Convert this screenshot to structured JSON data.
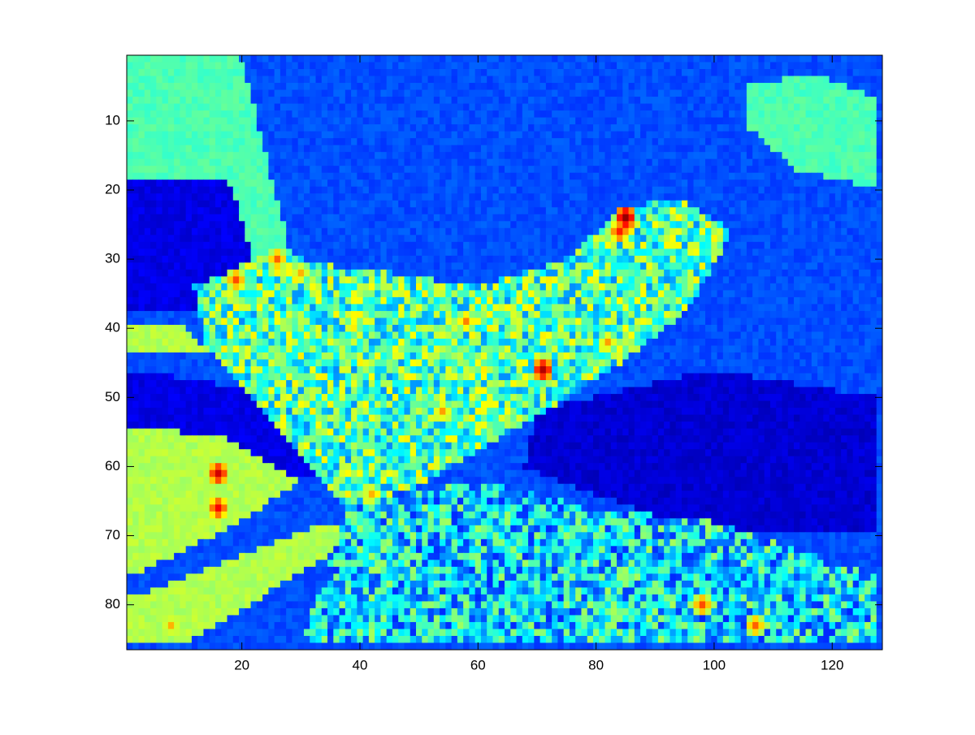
{
  "chart_data": {
    "type": "heatmap",
    "colormap": "jet",
    "title": "",
    "xlabel": "",
    "ylabel": "",
    "xlim": [
      0.5,
      128.5
    ],
    "ylim": [
      0.5,
      86.5
    ],
    "y_reversed": true,
    "grid": false,
    "legend": "none",
    "colorbar": false,
    "columns": 128,
    "rows": 86,
    "value_range": [
      0,
      1
    ],
    "x_ticks": [
      20,
      40,
      60,
      80,
      100,
      120
    ],
    "x_tick_labels": [
      "20",
      "40",
      "60",
      "80",
      "100",
      "120"
    ],
    "y_ticks": [
      10,
      20,
      30,
      40,
      50,
      60,
      70,
      80
    ],
    "y_tick_labels": [
      "10",
      "20",
      "30",
      "40",
      "50",
      "60",
      "70",
      "80"
    ],
    "regions": [
      {
        "description": "background sky",
        "value": 0.2
      },
      {
        "description": "upper-left diagonal band",
        "value": 0.45,
        "polygon": [
          [
            1,
            1
          ],
          [
            20,
            1
          ],
          [
            30,
            35
          ],
          [
            24,
            36
          ],
          [
            1,
            25
          ]
        ]
      },
      {
        "description": "upper-right patch",
        "value": 0.45,
        "polygon": [
          [
            106,
            5
          ],
          [
            117,
            3
          ],
          [
            128,
            7
          ],
          [
            128,
            20
          ],
          [
            114,
            17
          ],
          [
            106,
            11
          ]
        ]
      },
      {
        "description": "dark left region",
        "value": 0.1,
        "polygon": [
          [
            1,
            19
          ],
          [
            18,
            19
          ],
          [
            24,
            36
          ],
          [
            1,
            38
          ]
        ]
      },
      {
        "description": "dark middle-left region",
        "value": 0.1,
        "polygon": [
          [
            1,
            46
          ],
          [
            30,
            50
          ],
          [
            45,
            58
          ],
          [
            30,
            62
          ],
          [
            1,
            56
          ]
        ]
      },
      {
        "description": "dark right region",
        "value": 0.08,
        "polygon": [
          [
            70,
            52
          ],
          [
            100,
            46
          ],
          [
            128,
            50
          ],
          [
            128,
            70
          ],
          [
            100,
            70
          ],
          [
            80,
            64
          ],
          [
            68,
            60
          ]
        ]
      },
      {
        "description": "textured central shape",
        "value": 0.45,
        "polygon": [
          [
            12,
            34
          ],
          [
            25,
            29
          ],
          [
            36,
            31
          ],
          [
            46,
            32
          ],
          [
            60,
            34
          ],
          [
            75,
            30
          ],
          [
            84,
            23
          ],
          [
            94,
            21
          ],
          [
            103,
            26
          ],
          [
            96,
            37
          ],
          [
            86,
            44
          ],
          [
            72,
            52
          ],
          [
            60,
            58
          ],
          [
            50,
            63
          ],
          [
            38,
            66
          ],
          [
            30,
            58
          ],
          [
            22,
            50
          ],
          [
            14,
            43
          ]
        ]
      },
      {
        "description": "lower-left diagonal band",
        "value": 0.55,
        "polygon": [
          [
            1,
            79
          ],
          [
            35,
            68
          ],
          [
            40,
            70
          ],
          [
            10,
            86
          ],
          [
            1,
            86
          ]
        ]
      },
      {
        "description": "lower textured region",
        "value": 0.35,
        "polygon": [
          [
            38,
            66
          ],
          [
            60,
            62
          ],
          [
            80,
            66
          ],
          [
            100,
            68
          ],
          [
            128,
            76
          ],
          [
            128,
            86
          ],
          [
            30,
            86
          ]
        ]
      },
      {
        "description": "left mid patch",
        "value": 0.55,
        "polygon": [
          [
            1,
            40
          ],
          [
            10,
            39
          ],
          [
            14,
            44
          ],
          [
            1,
            44
          ]
        ]
      },
      {
        "description": "left lower patch",
        "value": 0.55,
        "polygon": [
          [
            1,
            54
          ],
          [
            18,
            56
          ],
          [
            30,
            62
          ],
          [
            20,
            68
          ],
          [
            1,
            76
          ]
        ]
      }
    ],
    "hotspots": [
      {
        "x": 85,
        "y": 24,
        "value": 0.98
      },
      {
        "x": 84,
        "y": 26,
        "value": 0.85
      },
      {
        "x": 71,
        "y": 46,
        "value": 0.95
      },
      {
        "x": 16,
        "y": 61,
        "value": 0.92
      },
      {
        "x": 16,
        "y": 66,
        "value": 0.88
      },
      {
        "x": 19,
        "y": 33,
        "value": 0.8
      },
      {
        "x": 26,
        "y": 30,
        "value": 0.78
      },
      {
        "x": 58,
        "y": 39,
        "value": 0.75
      },
      {
        "x": 54,
        "y": 52,
        "value": 0.72
      },
      {
        "x": 98,
        "y": 80,
        "value": 0.8
      },
      {
        "x": 107,
        "y": 83,
        "value": 0.78
      },
      {
        "x": 82,
        "y": 42,
        "value": 0.72
      },
      {
        "x": 8,
        "y": 83,
        "value": 0.7
      },
      {
        "x": 42,
        "y": 64,
        "value": 0.7
      },
      {
        "x": 30,
        "y": 32,
        "value": 0.7
      }
    ]
  }
}
